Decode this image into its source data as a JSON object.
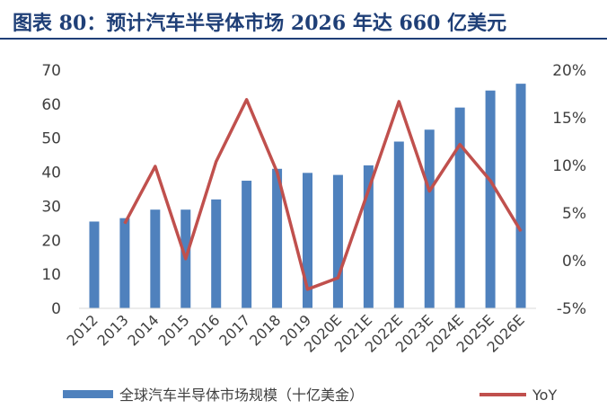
{
  "title": "图表 80：预计汽车半导体市场 2026 年达 660 亿美元",
  "chart_data": {
    "type": "bar+line",
    "categories": [
      "2012",
      "2013",
      "2014",
      "2015",
      "2016",
      "2017",
      "2018",
      "2019",
      "2020E",
      "2021E",
      "2022E",
      "2023E",
      "2024E",
      "2025E",
      "2026E"
    ],
    "series": [
      {
        "name": "全球汽车半导体市场规模（十亿美金）",
        "type": "bar",
        "axis": "left",
        "color": "#4f81bd",
        "values": [
          25.5,
          26.5,
          29,
          29,
          32,
          37.5,
          41,
          39.8,
          39.2,
          42,
          49,
          52.5,
          59,
          64,
          66
        ]
      },
      {
        "name": "YoY",
        "type": "line",
        "axis": "right",
        "color": "#c0504d",
        "values": [
          null,
          3.9,
          9.9,
          0.2,
          10.4,
          16.9,
          9.3,
          -3.0,
          -1.8,
          7.4,
          16.7,
          7.3,
          12.2,
          8.4,
          3.1
        ]
      }
    ],
    "y_left": {
      "ylim": [
        0,
        70
      ],
      "ticks": [
        "0",
        "10",
        "20",
        "30",
        "40",
        "50",
        "60",
        "70"
      ]
    },
    "y_right": {
      "ylim": [
        -5,
        20
      ],
      "ticks": [
        "-5%",
        "0%",
        "5%",
        "10%",
        "15%",
        "20%"
      ]
    },
    "legend_position": "bottom",
    "grid": false
  }
}
